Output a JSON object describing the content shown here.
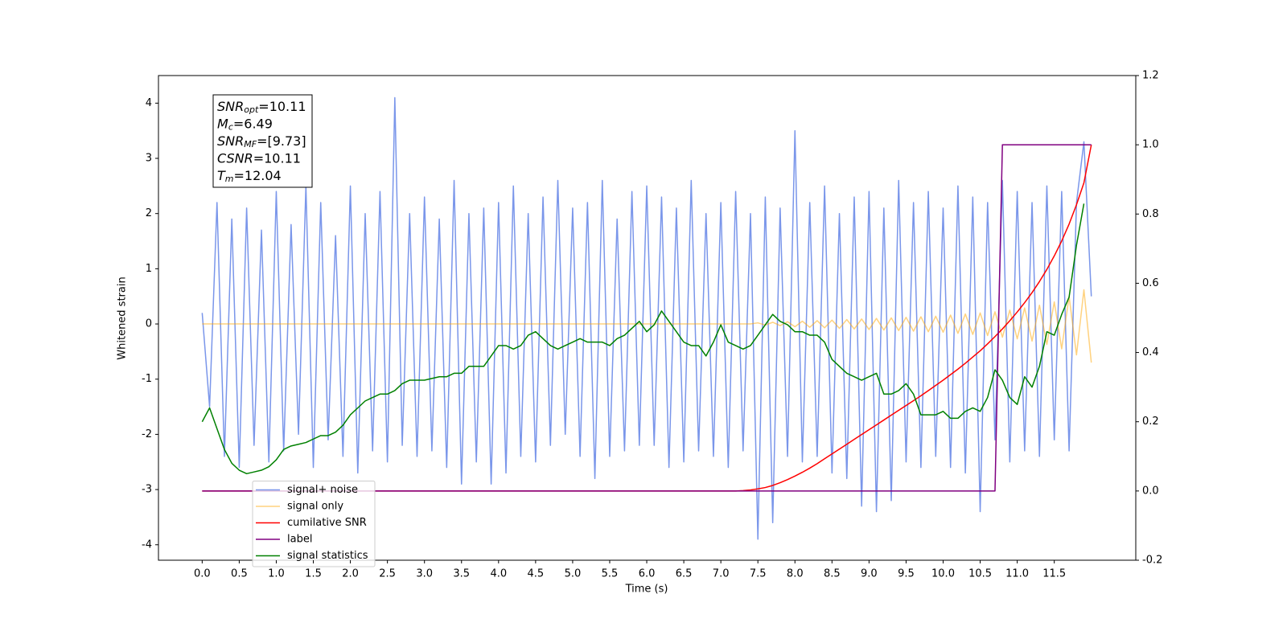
{
  "chart_data": {
    "type": "line",
    "x_label": "Time (s)",
    "y_label": "Whitened strain",
    "xlim": [
      -0.59,
      12.6
    ],
    "ylim": [
      -4.28,
      4.5
    ],
    "y2lim": [
      -0.2,
      1.2
    ],
    "xticks": [
      {
        "value": 0,
        "label": "0.0"
      },
      0.5,
      {
        "value": 1,
        "label": "1.0"
      },
      1.5,
      {
        "value": 2,
        "label": "2.0"
      },
      2.5,
      {
        "value": 3,
        "label": "3.0"
      },
      3.5,
      {
        "value": 4,
        "label": "4.0"
      },
      4.5,
      {
        "value": 5,
        "label": "5.0"
      },
      5.5,
      {
        "value": 6,
        "label": "6.0"
      },
      6.5,
      {
        "value": 7,
        "label": "7.0"
      },
      7.5,
      {
        "value": 8,
        "label": "8.0"
      },
      8.5,
      {
        "value": 9,
        "label": "9.0"
      },
      9.5,
      {
        "value": 10,
        "label": "10.0"
      },
      10.5,
      {
        "value": 11,
        "label": "11.0"
      },
      11.5
    ],
    "yticks": [
      -4,
      -3,
      -2,
      -1,
      0,
      1,
      2,
      3,
      4
    ],
    "y2ticks": [
      -0.2,
      {
        "value": 0,
        "label": "0.0"
      },
      0.2,
      0.4,
      0.6,
      0.8,
      {
        "value": 1,
        "label": "1.0"
      },
      1.2
    ],
    "grid": false,
    "legend": "lower left",
    "annotation": [
      {
        "symbol": "SNR",
        "sub": "opt",
        "text": "=10.11"
      },
      {
        "symbol": "M",
        "sub": "c",
        "text": "=6.49"
      },
      {
        "symbol": "SNR",
        "sub": "MF",
        "text": "=[9.73]"
      },
      {
        "symbol": "CSNR",
        "text": "=10.11"
      },
      {
        "symbol": "T",
        "sub": "m",
        "text": "=12.04"
      }
    ],
    "x": [
      0,
      0.1,
      0.2,
      0.3,
      0.4,
      0.5,
      0.6,
      0.7,
      0.8,
      0.9,
      1,
      1.1,
      1.2,
      1.3,
      1.4,
      1.5,
      1.6,
      1.7,
      1.8,
      1.9,
      2,
      2.1,
      2.2,
      2.3,
      2.4,
      2.5,
      2.6,
      2.7,
      2.8,
      2.9,
      3,
      3.1,
      3.2,
      3.3,
      3.4,
      3.5,
      3.6,
      3.7,
      3.8,
      3.9,
      4,
      4.1,
      4.2,
      4.3,
      4.4,
      4.5,
      4.6,
      4.7,
      4.8,
      4.9,
      5,
      5.1,
      5.2,
      5.3,
      5.4,
      5.5,
      5.6,
      5.7,
      5.8,
      5.9,
      6,
      6.1,
      6.2,
      6.3,
      6.4,
      6.5,
      6.6,
      6.7,
      6.8,
      6.9,
      7,
      7.1,
      7.2,
      7.3,
      7.4,
      7.5,
      7.6,
      7.7,
      7.8,
      7.9,
      8,
      8.1,
      8.2,
      8.3,
      8.4,
      8.5,
      8.6,
      8.7,
      8.8,
      8.9,
      9,
      9.1,
      9.2,
      9.3,
      9.4,
      9.5,
      9.6,
      9.7,
      9.8,
      9.9,
      10,
      10.1,
      10.2,
      10.3,
      10.4,
      10.5,
      10.6,
      10.7,
      10.8,
      10.9,
      11,
      11.1,
      11.2,
      11.3,
      11.4,
      11.5,
      11.6,
      11.7,
      11.8,
      11.9,
      12
    ],
    "series": [
      {
        "name": "signal+ noise",
        "color": "#4169e1",
        "alpha": 0.7,
        "values": [
          0.2,
          -1.5,
          2.2,
          -2.4,
          1.9,
          -2.6,
          2.1,
          -2.2,
          1.7,
          -2.5,
          2.4,
          -2.3,
          1.8,
          -2.0,
          2.5,
          -2.6,
          2.2,
          -2.1,
          1.6,
          -2.4,
          2.5,
          -2.7,
          2.0,
          -2.3,
          2.4,
          -2.5,
          4.1,
          -2.2,
          2.0,
          -2.4,
          2.3,
          -2.3,
          1.9,
          -2.6,
          2.6,
          -2.9,
          2.0,
          -2.5,
          2.1,
          -2.9,
          2.2,
          -2.7,
          2.5,
          -2.4,
          2.0,
          -2.5,
          2.3,
          -2.2,
          2.6,
          -2.0,
          2.1,
          -2.4,
          2.2,
          -2.8,
          2.6,
          -2.4,
          1.9,
          -2.3,
          2.4,
          -2.2,
          2.5,
          -2.2,
          2.3,
          -2.6,
          2.1,
          -2.5,
          2.6,
          -2.3,
          2.0,
          -2.4,
          2.2,
          -2.6,
          2.4,
          -2.3,
          2.0,
          -3.9,
          2.3,
          -3.6,
          2.1,
          -2.4,
          3.5,
          -2.5,
          2.2,
          -2.4,
          2.5,
          -2.7,
          2.0,
          -2.8,
          2.3,
          -3.3,
          2.4,
          -3.4,
          2.1,
          -3.2,
          2.6,
          -2.5,
          2.2,
          -2.6,
          2.4,
          -2.4,
          2.1,
          -2.6,
          2.5,
          -2.7,
          2.3,
          -3.4,
          2.2,
          -2.1,
          2.6,
          -2.5,
          2.4,
          -2.3,
          2.2,
          -2.4,
          2.5,
          -2.1,
          2.4,
          -2.3,
          2.2,
          3.3,
          0.5
        ]
      },
      {
        "name": "signal only",
        "color": "#ffa500",
        "alpha": 0.5,
        "values": [
          0,
          0,
          0,
          0,
          0,
          0,
          0,
          0,
          0,
          0,
          0,
          0,
          0,
          0,
          0,
          0,
          0,
          0,
          0,
          0,
          0,
          0,
          0,
          0,
          0,
          0,
          0,
          0,
          0,
          0,
          0,
          0,
          0,
          0,
          0,
          0,
          0,
          0,
          0,
          0,
          0,
          0,
          0,
          0,
          0,
          0,
          0,
          0,
          0,
          0,
          0,
          0,
          0,
          0,
          0,
          0,
          0,
          0,
          0,
          0,
          0,
          0,
          0,
          0,
          0,
          0,
          0,
          0,
          0,
          0,
          0,
          0,
          0,
          0,
          0,
          0.02,
          -0.02,
          0.03,
          -0.03,
          0.04,
          -0.05,
          0.05,
          -0.06,
          0.06,
          -0.07,
          0.07,
          -0.08,
          0.08,
          -0.09,
          0.09,
          -0.1,
          0.1,
          -0.11,
          0.11,
          -0.12,
          0.12,
          -0.13,
          0.13,
          -0.14,
          0.14,
          -0.15,
          0.16,
          -0.17,
          0.18,
          -0.19,
          0.2,
          -0.21,
          0.22,
          -0.24,
          0.25,
          -0.27,
          0.29,
          -0.31,
          0.34,
          -0.37,
          0.4,
          -0.45,
          0.5,
          -0.56,
          0.62,
          -0.7
        ]
      },
      {
        "name": "cumilative SNR",
        "color": "#ff0000",
        "axis": "y2",
        "values": [
          0,
          0,
          0,
          0,
          0,
          0,
          0,
          0,
          0,
          0,
          0,
          0,
          0,
          0,
          0,
          0,
          0,
          0,
          0,
          0,
          0,
          0,
          0,
          0,
          0,
          0,
          0,
          0,
          0,
          0,
          0,
          0,
          0,
          0,
          0,
          0,
          0,
          0,
          0,
          0,
          0,
          0,
          0,
          0,
          0,
          0,
          0,
          0,
          0,
          0,
          0,
          0,
          0,
          0,
          0,
          0,
          0,
          0,
          0,
          0,
          0,
          0,
          0,
          0,
          0,
          0,
          0,
          0,
          0,
          0,
          0,
          0,
          0,
          0.001,
          0.003,
          0.006,
          0.01,
          0.016,
          0.024,
          0.033,
          0.043,
          0.054,
          0.066,
          0.079,
          0.093,
          0.107,
          0.121,
          0.135,
          0.149,
          0.163,
          0.177,
          0.191,
          0.205,
          0.219,
          0.233,
          0.247,
          0.261,
          0.275,
          0.29,
          0.305,
          0.32,
          0.336,
          0.352,
          0.369,
          0.387,
          0.405,
          0.425,
          0.446,
          0.468,
          0.492,
          0.517,
          0.544,
          0.573,
          0.605,
          0.64,
          0.679,
          0.722,
          0.771,
          0.827,
          0.89,
          1.0
        ]
      },
      {
        "name": "label",
        "color": "#800080",
        "axis": "y2",
        "values": [
          0,
          0,
          0,
          0,
          0,
          0,
          0,
          0,
          0,
          0,
          0,
          0,
          0,
          0,
          0,
          0,
          0,
          0,
          0,
          0,
          0,
          0,
          0,
          0,
          0,
          0,
          0,
          0,
          0,
          0,
          0,
          0,
          0,
          0,
          0,
          0,
          0,
          0,
          0,
          0,
          0,
          0,
          0,
          0,
          0,
          0,
          0,
          0,
          0,
          0,
          0,
          0,
          0,
          0,
          0,
          0,
          0,
          0,
          0,
          0,
          0,
          0,
          0,
          0,
          0,
          0,
          0,
          0,
          0,
          0,
          0,
          0,
          0,
          0,
          0,
          0,
          0,
          0,
          0,
          0,
          0,
          0,
          0,
          0,
          0,
          0,
          0,
          0,
          0,
          0,
          0,
          0,
          0,
          0,
          0,
          0,
          0,
          0,
          0,
          0,
          0,
          0,
          0,
          0,
          0,
          0,
          0,
          0,
          1,
          1,
          1,
          1,
          1,
          1,
          1,
          1,
          1,
          1,
          1,
          1,
          1
        ]
      },
      {
        "name": "signal statistics",
        "color": "#008000",
        "axis": "y2",
        "values": [
          0.2,
          0.24,
          0.18,
          0.12,
          0.08,
          0.06,
          0.05,
          0.055,
          0.06,
          0.07,
          0.09,
          0.12,
          0.13,
          0.135,
          0.14,
          0.15,
          0.16,
          0.16,
          0.17,
          0.19,
          0.22,
          0.24,
          0.26,
          0.27,
          0.28,
          0.28,
          0.29,
          0.31,
          0.32,
          0.32,
          0.32,
          0.325,
          0.33,
          0.33,
          0.34,
          0.34,
          0.36,
          0.36,
          0.36,
          0.39,
          0.42,
          0.42,
          0.41,
          0.42,
          0.45,
          0.46,
          0.44,
          0.42,
          0.41,
          0.42,
          0.43,
          0.44,
          0.43,
          0.43,
          0.43,
          0.42,
          0.44,
          0.45,
          0.47,
          0.49,
          0.46,
          0.48,
          0.52,
          0.49,
          0.46,
          0.43,
          0.42,
          0.42,
          0.39,
          0.43,
          0.48,
          0.43,
          0.42,
          0.41,
          0.42,
          0.45,
          0.48,
          0.51,
          0.49,
          0.48,
          0.46,
          0.46,
          0.45,
          0.45,
          0.43,
          0.38,
          0.36,
          0.34,
          0.33,
          0.32,
          0.33,
          0.34,
          0.28,
          0.28,
          0.29,
          0.31,
          0.28,
          0.22,
          0.22,
          0.22,
          0.23,
          0.21,
          0.21,
          0.23,
          0.24,
          0.23,
          0.27,
          0.35,
          0.32,
          0.27,
          0.25,
          0.33,
          0.3,
          0.36,
          0.46,
          0.45,
          0.51,
          0.56,
          0.71,
          0.83,
          null
        ]
      }
    ]
  }
}
